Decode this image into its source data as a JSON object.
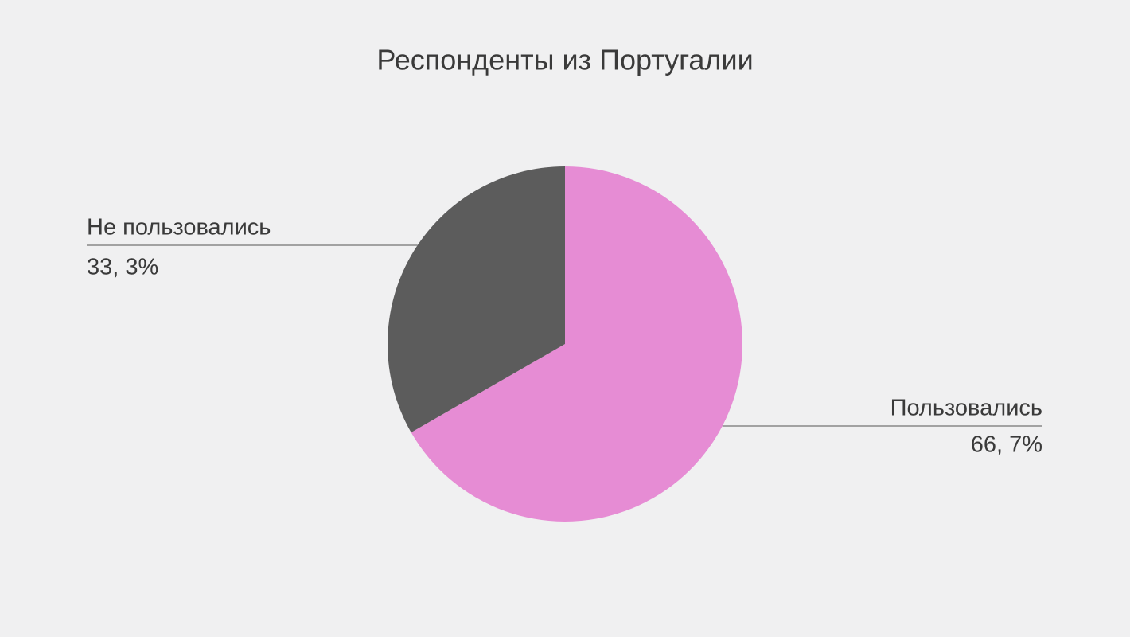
{
  "chart_data": {
    "type": "pie",
    "title": "Респонденты из Португалии",
    "categories": [
      "Пользовались",
      "Не пользовались"
    ],
    "values": [
      66.7,
      33.3
    ],
    "value_labels": [
      "66, 7%",
      "33, 3%"
    ],
    "colors": [
      "#e68cd4",
      "#5c5c5c"
    ]
  }
}
